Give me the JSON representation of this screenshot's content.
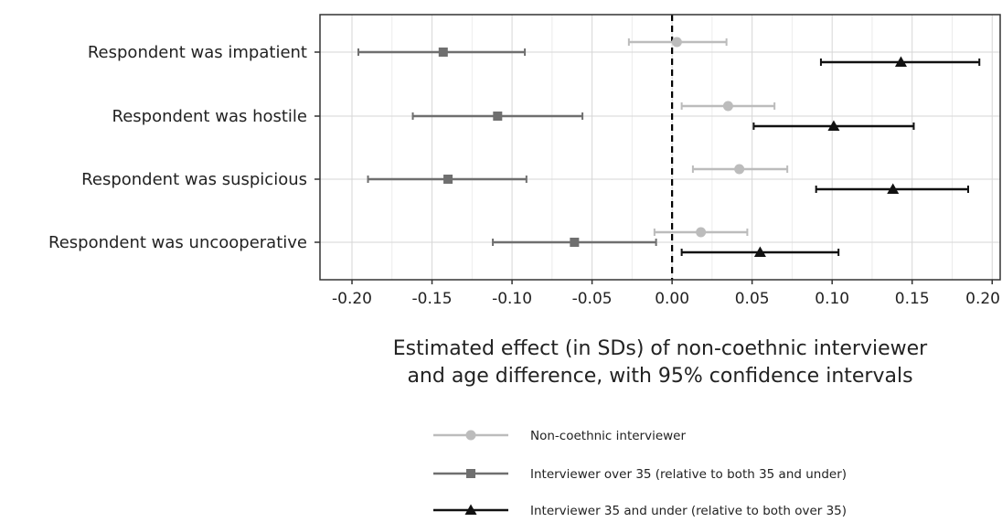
{
  "chart_data": {
    "type": "scatter",
    "subtype": "coefficient-plot",
    "title": "",
    "xlabel": [
      "Estimated effect (in SDs) of non-coethnic interviewer",
      "and age difference, with 95% confidence intervals"
    ],
    "ylabel": "",
    "xlim": [
      -0.22,
      0.205
    ],
    "xticks": [
      -0.2,
      -0.15,
      -0.1,
      -0.05,
      0.0,
      0.05,
      0.1,
      0.15,
      0.2
    ],
    "xtick_labels": [
      "-0.20",
      "-0.15",
      "-0.10",
      "-0.05",
      "0.00",
      "0.05",
      "0.10",
      "0.15",
      "0.20"
    ],
    "reference_line": {
      "x": 0,
      "style": "dashed"
    },
    "grid": true,
    "legend_position": "bottom",
    "categories": [
      "Respondent was impatient",
      "Respondent was hostile",
      "Respondent was suspicious",
      "Respondent was uncooperative"
    ],
    "series": [
      {
        "name": "Non-coethnic interviewer",
        "color": "#bcbcbc",
        "marker": "circle",
        "points": [
          {
            "estimate": 0.003,
            "low": -0.027,
            "high": 0.034
          },
          {
            "estimate": 0.035,
            "low": 0.006,
            "high": 0.064
          },
          {
            "estimate": 0.042,
            "low": 0.013,
            "high": 0.072
          },
          {
            "estimate": 0.018,
            "low": -0.011,
            "high": 0.047
          }
        ]
      },
      {
        "name": "Interviewer over 35 (relative to both 35 and under)",
        "color": "#6f6f6f",
        "marker": "square",
        "points": [
          {
            "estimate": -0.143,
            "low": -0.196,
            "high": -0.092
          },
          {
            "estimate": -0.109,
            "low": -0.162,
            "high": -0.056
          },
          {
            "estimate": -0.14,
            "low": -0.19,
            "high": -0.091
          },
          {
            "estimate": -0.061,
            "low": -0.112,
            "high": -0.01
          }
        ]
      },
      {
        "name": "Interviewer 35 and under (relative to both over 35)",
        "color": "#111111",
        "marker": "triangle",
        "points": [
          {
            "estimate": 0.143,
            "low": 0.093,
            "high": 0.192
          },
          {
            "estimate": 0.101,
            "low": 0.051,
            "high": 0.151
          },
          {
            "estimate": 0.138,
            "low": 0.09,
            "high": 0.185
          },
          {
            "estimate": 0.055,
            "low": 0.006,
            "high": 0.104
          }
        ]
      }
    ]
  }
}
